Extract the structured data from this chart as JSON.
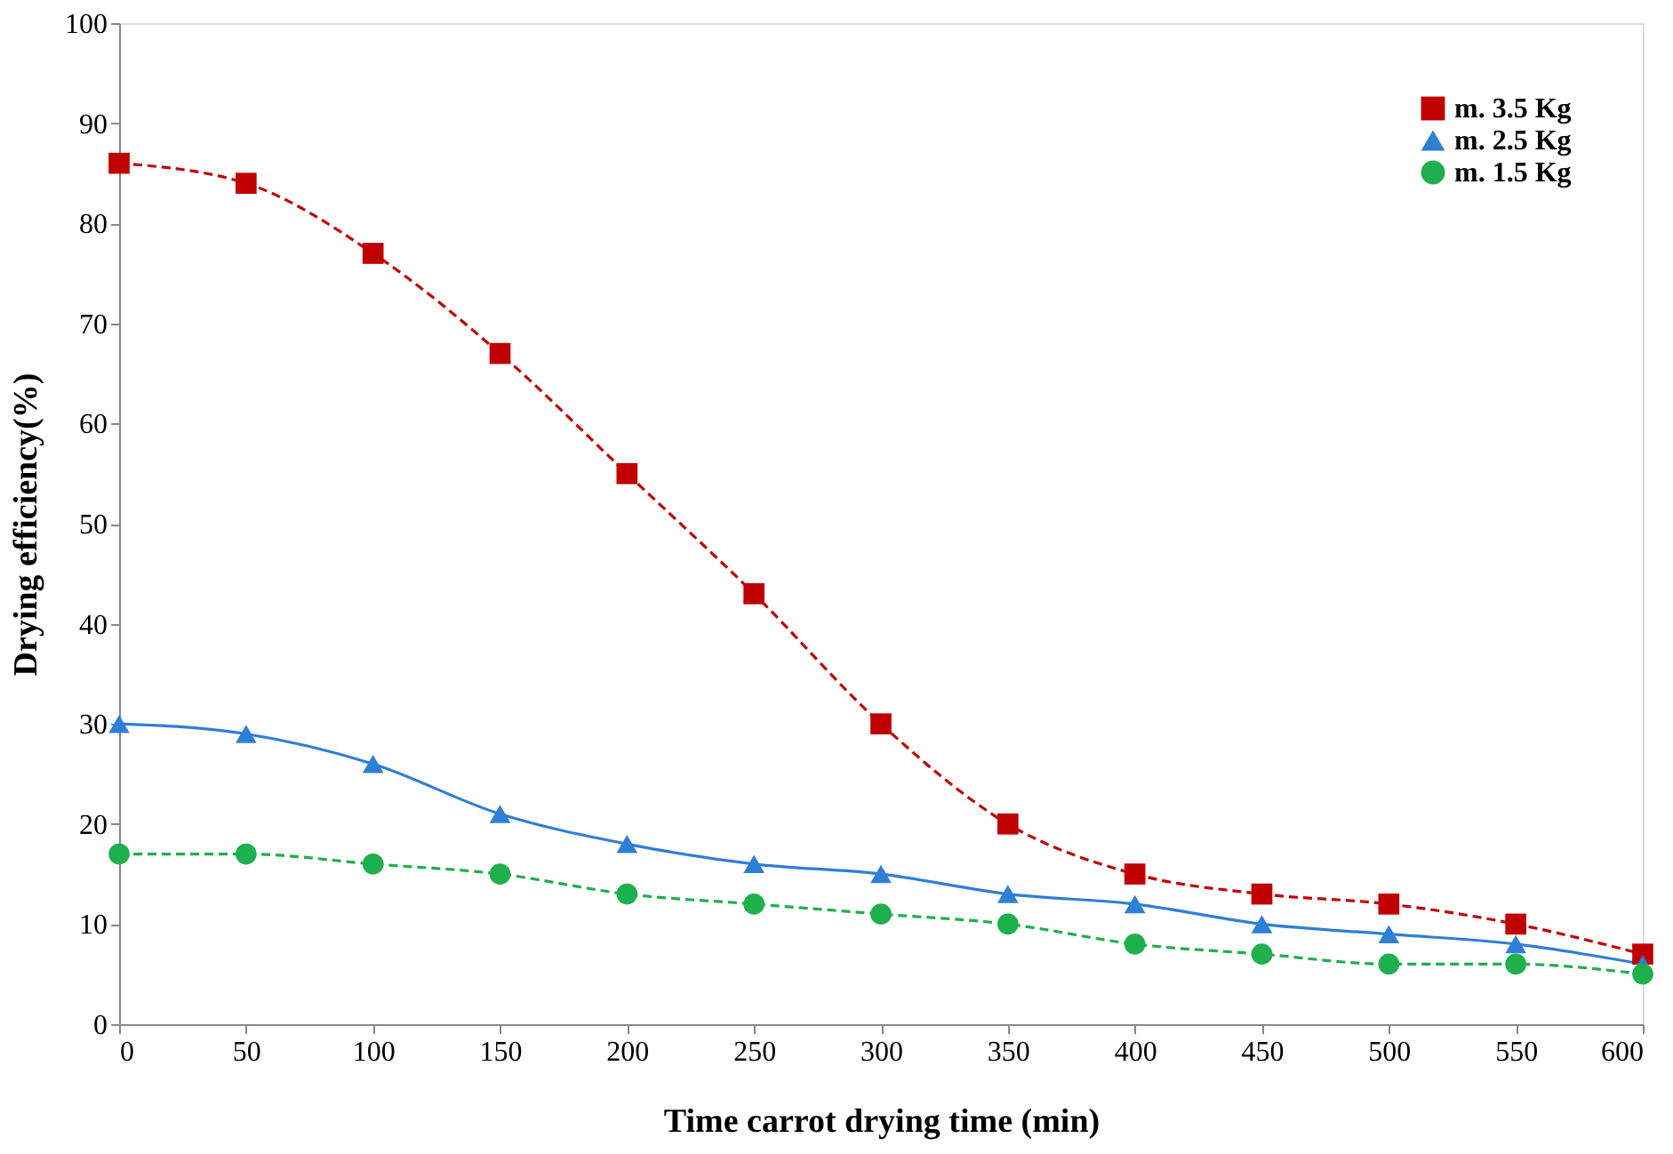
{
  "chart_data": {
    "type": "line",
    "xlabel": "Time carrot drying time (min)",
    "ylabel": "Drying efficiency(%)",
    "x": [
      0,
      50,
      100,
      150,
      200,
      250,
      300,
      350,
      400,
      450,
      500,
      550,
      600
    ],
    "series": [
      {
        "name": "m. 3.5 Kg",
        "color": "#c00000",
        "marker": "square",
        "line_style": "dashed",
        "values": [
          86,
          84,
          77,
          67,
          55,
          43,
          30,
          20,
          15,
          13,
          12,
          10,
          7
        ]
      },
      {
        "name": "m. 2.5 Kg",
        "color": "#2e7fd6",
        "marker": "triangle",
        "line_style": "solid",
        "values": [
          30,
          29,
          26,
          21,
          18,
          16,
          15,
          13,
          12,
          10,
          9,
          8,
          6
        ]
      },
      {
        "name": "m. 1.5 Kg",
        "color": "#1db04c",
        "marker": "circle",
        "line_style": "dashed",
        "values": [
          17,
          17,
          16,
          15,
          13,
          12,
          11,
          10,
          8,
          7,
          6,
          6,
          5
        ]
      }
    ],
    "xlim": [
      0,
      600
    ],
    "xticks": [
      0,
      50,
      100,
      150,
      200,
      250,
      300,
      350,
      400,
      450,
      500,
      550,
      600
    ],
    "ylim": [
      0,
      100
    ],
    "yticks": [
      0,
      10,
      20,
      30,
      40,
      50,
      60,
      70,
      80,
      90,
      100
    ],
    "grid": false,
    "legend": "top right"
  }
}
